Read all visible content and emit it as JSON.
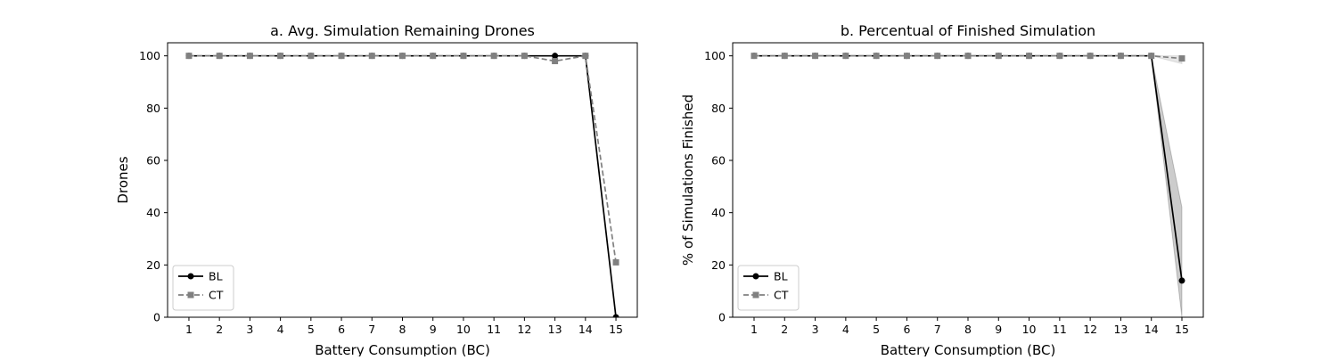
{
  "chart_data": [
    {
      "type": "line",
      "title": "a. Avg. Simulation Remaining Drones",
      "xlabel": "Battery Consumption (BC)",
      "ylabel": "Drones",
      "x": [
        1,
        2,
        3,
        4,
        5,
        6,
        7,
        8,
        9,
        10,
        11,
        12,
        13,
        14,
        15
      ],
      "xlim": [
        0.3,
        15.7
      ],
      "xticks": [
        1,
        2,
        3,
        4,
        5,
        6,
        7,
        8,
        9,
        10,
        11,
        12,
        13,
        14,
        15
      ],
      "ylim": [
        0,
        105
      ],
      "yticks": [
        0,
        20,
        40,
        60,
        80,
        100
      ],
      "grid": false,
      "legend": "lower left",
      "series": [
        {
          "name": "BL",
          "color": "#000000",
          "marker": "circle",
          "linestyle": "solid",
          "values": [
            100,
            100,
            100,
            100,
            100,
            100,
            100,
            100,
            100,
            100,
            100,
            100,
            100,
            100,
            0
          ]
        },
        {
          "name": "CT",
          "color": "#808080",
          "marker": "square",
          "linestyle": "dashed",
          "values": [
            100,
            100,
            100,
            100,
            100,
            100,
            100,
            100,
            100,
            100,
            100,
            100,
            98,
            100,
            21
          ]
        }
      ]
    },
    {
      "type": "line",
      "title": "b. Percentual of Finished Simulation",
      "xlabel": "Battery Consumption (BC)",
      "ylabel": "% of Simulations Finished",
      "x": [
        1,
        2,
        3,
        4,
        5,
        6,
        7,
        8,
        9,
        10,
        11,
        12,
        13,
        14,
        15
      ],
      "xlim": [
        0.3,
        15.7
      ],
      "xticks": [
        1,
        2,
        3,
        4,
        5,
        6,
        7,
        8,
        9,
        10,
        11,
        12,
        13,
        14,
        15
      ],
      "ylim": [
        0,
        105
      ],
      "yticks": [
        0,
        20,
        40,
        60,
        80,
        100
      ],
      "grid": false,
      "legend": "lower left",
      "series": [
        {
          "name": "BL",
          "color": "#000000",
          "marker": "circle",
          "linestyle": "solid",
          "values": [
            100,
            100,
            100,
            100,
            100,
            100,
            100,
            100,
            100,
            100,
            100,
            100,
            100,
            100,
            14
          ],
          "lower": [
            100,
            100,
            100,
            100,
            100,
            100,
            100,
            100,
            100,
            100,
            100,
            100,
            100,
            100,
            0
          ],
          "upper": [
            100,
            100,
            100,
            100,
            100,
            100,
            100,
            100,
            100,
            100,
            100,
            100,
            100,
            100,
            42
          ]
        },
        {
          "name": "CT",
          "color": "#808080",
          "marker": "square",
          "linestyle": "dashed",
          "values": [
            100,
            100,
            100,
            100,
            100,
            100,
            100,
            100,
            100,
            100,
            100,
            100,
            100,
            100,
            99
          ],
          "lower": [
            100,
            100,
            100,
            100,
            100,
            100,
            100,
            100,
            100,
            100,
            100,
            100,
            100,
            100,
            97
          ],
          "upper": [
            100,
            100,
            100,
            100,
            100,
            100,
            100,
            100,
            100,
            100,
            100,
            100,
            100,
            100,
            100
          ]
        }
      ]
    }
  ]
}
